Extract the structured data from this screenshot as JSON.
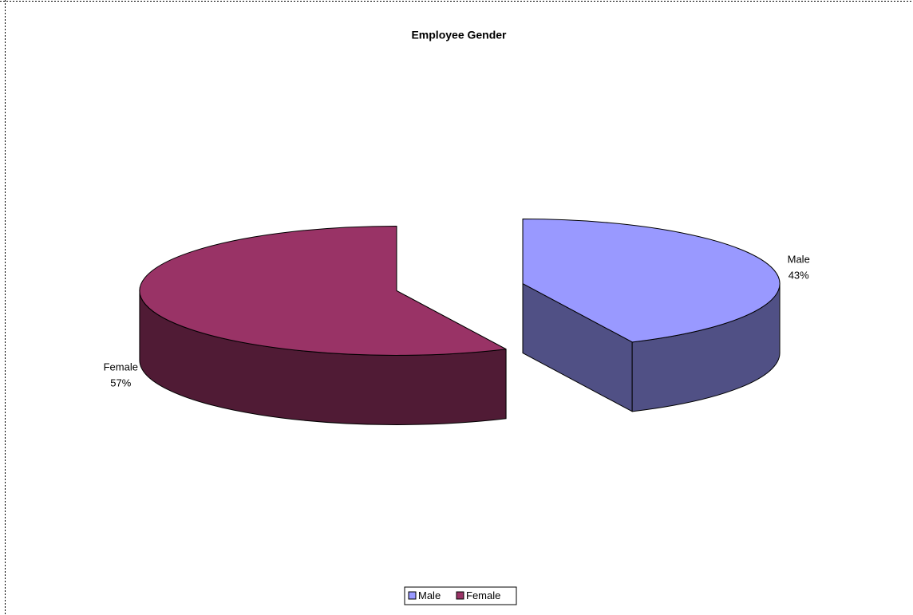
{
  "chart_data": {
    "type": "pie3d",
    "title": "Employee Gender",
    "categories": [
      "Male",
      "Female"
    ],
    "values": [
      43,
      57
    ],
    "value_labels": [
      "43%",
      "57%"
    ],
    "colors": [
      "#9999ff",
      "#993366"
    ],
    "legend": "bottom"
  }
}
